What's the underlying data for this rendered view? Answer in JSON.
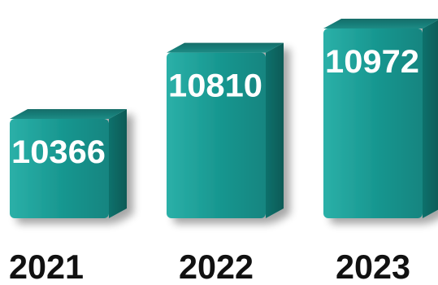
{
  "colors": {
    "front": "#17968f",
    "front_light": "#2bb0a8",
    "top": "#1a8580",
    "side": "#0e6b66",
    "value_text": "#ffffff",
    "category_text": "#111111"
  },
  "chart_data": {
    "type": "bar",
    "style": "3d-box",
    "categories": [
      "2021",
      "2022",
      "2023"
    ],
    "values": [
      10366,
      10810,
      10972
    ],
    "value_labels": [
      "10366",
      "10810",
      "10972"
    ],
    "title": "",
    "xlabel": "",
    "ylabel": "",
    "grid": false,
    "legend": "none"
  }
}
